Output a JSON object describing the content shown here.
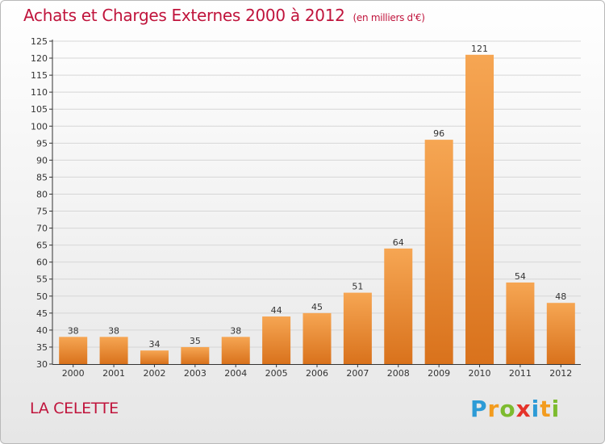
{
  "header": {
    "title": "Achats et Charges Externes 2000 à 2012",
    "unit": "(en milliers d'€)"
  },
  "footer": {
    "commune": "LA CELETTE",
    "logo": {
      "letters": [
        "P",
        "r",
        "o",
        "x",
        "i",
        "t",
        "i"
      ],
      "colors": [
        "#2d9bd6",
        "#f39c1f",
        "#7dbb2f",
        "#e5332a",
        "#2d9bd6",
        "#f39c1f",
        "#7dbb2f"
      ]
    }
  },
  "colors": {
    "title": "#c0143c",
    "bar_light": "#f6a653",
    "bar_dark": "#d9721c",
    "axis": "#333333",
    "grid": "#d6d6d6"
  },
  "chart_data": {
    "type": "bar",
    "title": "Achats et Charges Externes 2000 à 2012",
    "subtitle": "(en milliers d'€)",
    "categories": [
      "2000",
      "2001",
      "2002",
      "2003",
      "2004",
      "2005",
      "2006",
      "2007",
      "2008",
      "2009",
      "2010",
      "2011",
      "2012"
    ],
    "values": [
      38,
      38,
      34,
      35,
      38,
      44,
      45,
      51,
      64,
      96,
      121,
      54,
      48
    ],
    "ylim": [
      30,
      125
    ],
    "ytick_step": 5,
    "yticks": [
      "30",
      "35",
      "40",
      "45",
      "50",
      "55",
      "60",
      "65",
      "70",
      "75",
      "80",
      "85",
      "90",
      "95",
      "100",
      "105",
      "110",
      "115",
      "120",
      "125"
    ],
    "grid": true,
    "legend": "none"
  }
}
